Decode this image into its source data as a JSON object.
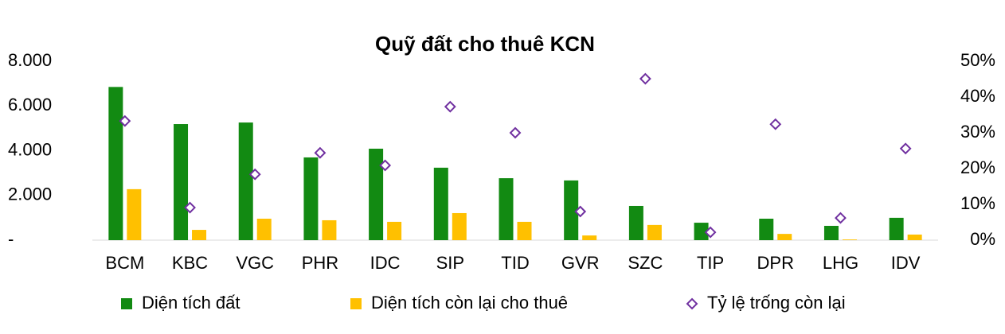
{
  "chart_data": {
    "type": "bar_line",
    "title": "Quỹ đất cho thuê KCN",
    "categories": [
      "BCM",
      "KBC",
      "VGC",
      "PHR",
      "IDC",
      "SIP",
      "TID",
      "GVR",
      "SZC",
      "TIP",
      "DPR",
      "LHG",
      "IDV"
    ],
    "series": [
      {
        "name": "Diện tích đất",
        "color": "#128a12",
        "kind": "bar",
        "values": [
          6850,
          5190,
          5260,
          3700,
          4090,
          3240,
          2770,
          2670,
          1530,
          780,
          960,
          640,
          1000
        ]
      },
      {
        "name": "Diện tích còn lại cho thuê",
        "color": "#ffc000",
        "kind": "bar",
        "values": [
          2280,
          460,
          960,
          890,
          820,
          1210,
          820,
          210,
          680,
          0,
          280,
          30,
          250
        ]
      },
      {
        "name": "Tỷ lệ trống còn lại",
        "color": "#7030a0",
        "kind": "diamond",
        "axis": "y2",
        "values": [
          33.3,
          9.1,
          18.4,
          24.4,
          20.9,
          37.3,
          30,
          8,
          45.1,
          2.2,
          32.4,
          6.2,
          25.6
        ]
      }
    ],
    "ylim": [
      0,
      8000
    ],
    "yticks": [
      {
        "value": 0,
        "label": "-"
      },
      {
        "value": 2000,
        "label": "2.000"
      },
      {
        "value": 4000,
        "label": "4.000"
      },
      {
        "value": 6000,
        "label": "6.000"
      },
      {
        "value": 8000,
        "label": "8.000"
      }
    ],
    "y2lim": [
      0,
      50
    ],
    "y2ticks": [
      {
        "value": 0,
        "label": "0%"
      },
      {
        "value": 10,
        "label": "10%"
      },
      {
        "value": 20,
        "label": "20%"
      },
      {
        "value": 30,
        "label": "30%"
      },
      {
        "value": 40,
        "label": "40%"
      },
      {
        "value": 50,
        "label": "50%"
      }
    ],
    "grid": false,
    "legend": "bottom"
  }
}
